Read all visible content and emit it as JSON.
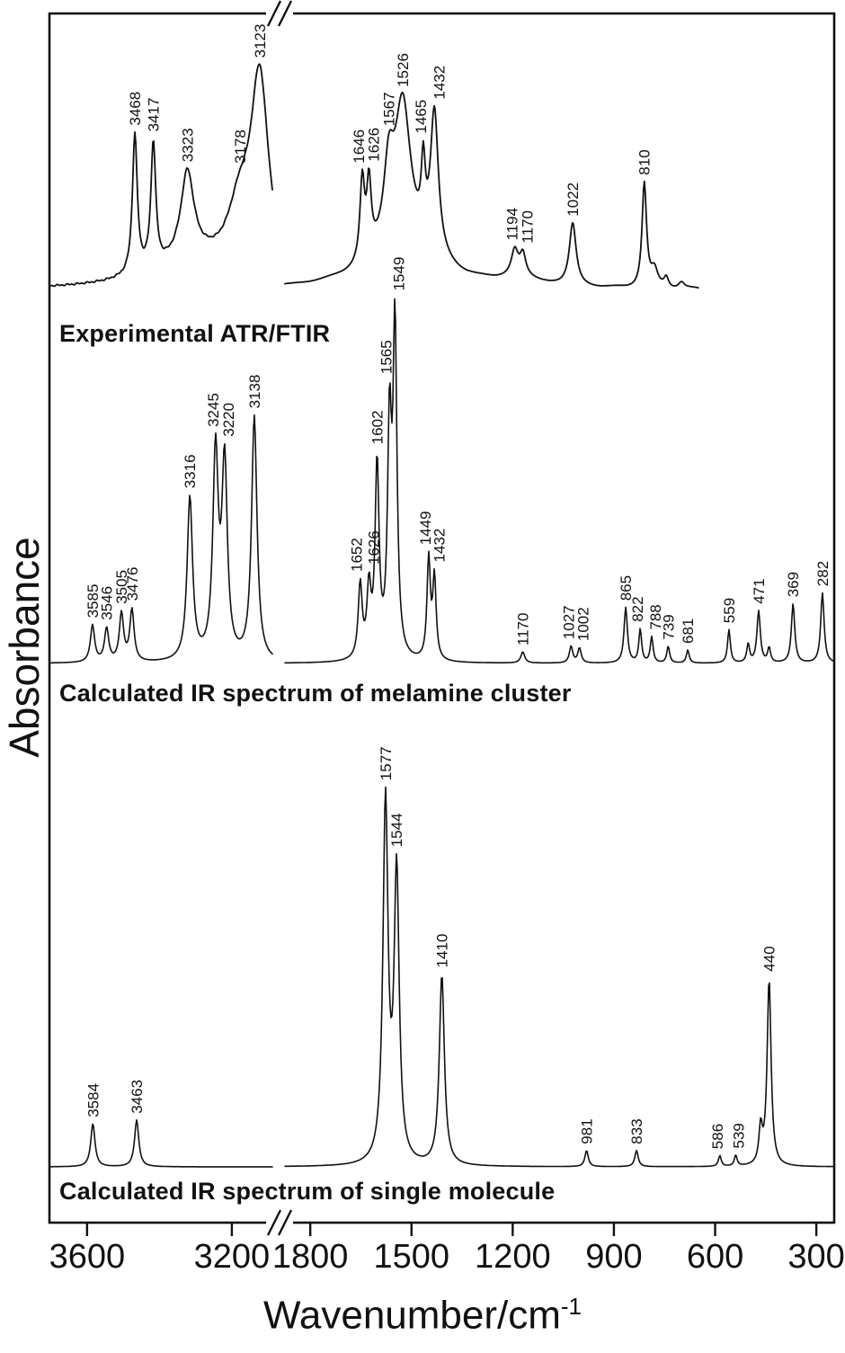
{
  "chart_data": {
    "type": "line",
    "ylabel": "Absorbance",
    "xlabel": "Wavenumber/cm^-1",
    "xlabel_base": "Wavenumber/cm",
    "xlabel_sup": "-1",
    "x_axis": {
      "ticks": [
        3600,
        3200,
        1800,
        1500,
        1200,
        900,
        600,
        300
      ],
      "broken": true,
      "visible_range_segments": [
        [
          3704,
          3088
        ],
        [
          1875,
          247
        ]
      ]
    },
    "grid": false,
    "legend": "none",
    "series": [
      {
        "name": "Experimental ATR/FTIR",
        "x_min": 650,
        "peaks": [
          {
            "wn": 3468,
            "h": 0.67,
            "hw": 8,
            "lbl": "3468"
          },
          {
            "wn": 3417,
            "h": 0.6,
            "hw": 8,
            "lbl": "3417"
          },
          {
            "wn": 3323,
            "h": 0.42,
            "hw": 22,
            "lbl": "3323"
          },
          {
            "wn": 3178,
            "h": 0.28,
            "hw": 40,
            "lbl": "3178"
          },
          {
            "wn": 3123,
            "h": 0.93,
            "hw": 30,
            "lbl": "3123"
          },
          {
            "wn": 3300,
            "h": 0.12,
            "hw": 150
          },
          {
            "wn": 1646,
            "h": 0.38,
            "hw": 8,
            "lbl": "1646",
            "dx": -4
          },
          {
            "wn": 1626,
            "h": 0.34,
            "hw": 8,
            "lbl": "1626",
            "dx": 5
          },
          {
            "wn": 1567,
            "h": 0.36,
            "hw": 18,
            "lbl": "1567"
          },
          {
            "wn": 1526,
            "h": 0.68,
            "hw": 28,
            "lbl": "1526"
          },
          {
            "wn": 1465,
            "h": 0.33,
            "hw": 7,
            "lbl": "1465",
            "dx": -3
          },
          {
            "wn": 1432,
            "h": 0.68,
            "hw": 14,
            "lbl": "1432",
            "dx": 5
          },
          {
            "wn": 1520,
            "h": 0.18,
            "hw": 130
          },
          {
            "wn": 1194,
            "h": 0.12,
            "hw": 12,
            "lbl": "1194",
            "dx": -3
          },
          {
            "wn": 1170,
            "h": 0.1,
            "hw": 10,
            "lbl": "1170",
            "dx": 5
          },
          {
            "wn": 1180,
            "h": 0.04,
            "hw": 70
          },
          {
            "wn": 1022,
            "h": 0.3,
            "hw": 12,
            "lbl": "1022"
          },
          {
            "wn": 810,
            "h": 0.5,
            "hw": 8,
            "lbl": "810"
          },
          {
            "wn": 780,
            "h": 0.08,
            "hw": 12
          },
          {
            "wn": 745,
            "h": 0.05,
            "hw": 8
          },
          {
            "wn": 700,
            "h": 0.03,
            "hw": 10
          }
        ]
      },
      {
        "name": "Calculated IR spectrum of melamine cluster",
        "peaks": [
          {
            "wn": 3585,
            "h": 0.1,
            "hw": 7,
            "lbl": "3585"
          },
          {
            "wn": 3546,
            "h": 0.09,
            "hw": 7,
            "lbl": "3546"
          },
          {
            "wn": 3505,
            "h": 0.13,
            "hw": 7,
            "lbl": "3505"
          },
          {
            "wn": 3476,
            "h": 0.14,
            "hw": 7,
            "lbl": "3476"
          },
          {
            "wn": 3316,
            "h": 0.44,
            "hw": 9,
            "lbl": "3316"
          },
          {
            "wn": 3245,
            "h": 0.55,
            "hw": 9,
            "lbl": "3245",
            "dx": -3
          },
          {
            "wn": 3220,
            "h": 0.52,
            "hw": 9,
            "lbl": "3220",
            "dx": 4
          },
          {
            "wn": 3138,
            "h": 0.66,
            "hw": 9,
            "lbl": "3138"
          },
          {
            "wn": 1652,
            "h": 0.2,
            "hw": 7,
            "lbl": "1652",
            "dx": -4
          },
          {
            "wn": 1626,
            "h": 0.18,
            "hw": 7,
            "lbl": "1626",
            "dx": 5
          },
          {
            "wn": 1602,
            "h": 0.52,
            "hw": 7,
            "lbl": "1602"
          },
          {
            "wn": 1565,
            "h": 0.6,
            "hw": 7,
            "lbl": "1565",
            "dx": -4
          },
          {
            "wn": 1549,
            "h": 0.88,
            "hw": 7,
            "lbl": "1549",
            "dx": 4
          },
          {
            "wn": 1449,
            "h": 0.27,
            "hw": 6,
            "lbl": "1449",
            "dx": -4
          },
          {
            "wn": 1432,
            "h": 0.22,
            "hw": 6,
            "lbl": "1432",
            "dx": 5
          },
          {
            "wn": 1170,
            "h": 0.03,
            "hw": 7,
            "lbl": "1170"
          },
          {
            "wn": 1027,
            "h": 0.045,
            "hw": 6,
            "lbl": "1027",
            "dx": -3
          },
          {
            "wn": 1002,
            "h": 0.04,
            "hw": 6,
            "lbl": "1002",
            "dx": 4
          },
          {
            "wn": 865,
            "h": 0.15,
            "hw": 6,
            "lbl": "865"
          },
          {
            "wn": 822,
            "h": 0.09,
            "hw": 5,
            "lbl": "822",
            "dx": -3
          },
          {
            "wn": 788,
            "h": 0.07,
            "hw": 5,
            "lbl": "788",
            "dx": 4
          },
          {
            "wn": 739,
            "h": 0.045,
            "hw": 5,
            "lbl": "739"
          },
          {
            "wn": 681,
            "h": 0.035,
            "hw": 5,
            "lbl": "681"
          },
          {
            "wn": 559,
            "h": 0.09,
            "hw": 5,
            "lbl": "559"
          },
          {
            "wn": 502,
            "h": 0.05,
            "hw": 5
          },
          {
            "wn": 471,
            "h": 0.14,
            "hw": 6,
            "lbl": "471"
          },
          {
            "wn": 440,
            "h": 0.04,
            "hw": 5
          },
          {
            "wn": 369,
            "h": 0.16,
            "hw": 6,
            "lbl": "369"
          },
          {
            "wn": 282,
            "h": 0.19,
            "hw": 6,
            "lbl": "282"
          }
        ]
      },
      {
        "name": "Calculated IR spectrum of single molecule",
        "peaks": [
          {
            "wn": 3584,
            "h": 0.12,
            "hw": 7,
            "lbl": "3584"
          },
          {
            "wn": 3463,
            "h": 0.13,
            "hw": 7,
            "lbl": "3463"
          },
          {
            "wn": 1577,
            "h": 1.0,
            "hw": 9,
            "lbl": "1577"
          },
          {
            "wn": 1544,
            "h": 0.8,
            "hw": 9,
            "lbl": "1544"
          },
          {
            "wn": 1410,
            "h": 0.53,
            "hw": 9,
            "lbl": "1410"
          },
          {
            "wn": 981,
            "h": 0.045,
            "hw": 6,
            "lbl": "981"
          },
          {
            "wn": 833,
            "h": 0.045,
            "hw": 6,
            "lbl": "833"
          },
          {
            "wn": 586,
            "h": 0.03,
            "hw": 5,
            "lbl": "586",
            "dx": -3
          },
          {
            "wn": 539,
            "h": 0.03,
            "hw": 5,
            "lbl": "539",
            "dx": 3
          },
          {
            "wn": 465,
            "h": 0.1,
            "hw": 6
          },
          {
            "wn": 440,
            "h": 0.52,
            "hw": 7,
            "lbl": "440"
          }
        ]
      }
    ]
  }
}
